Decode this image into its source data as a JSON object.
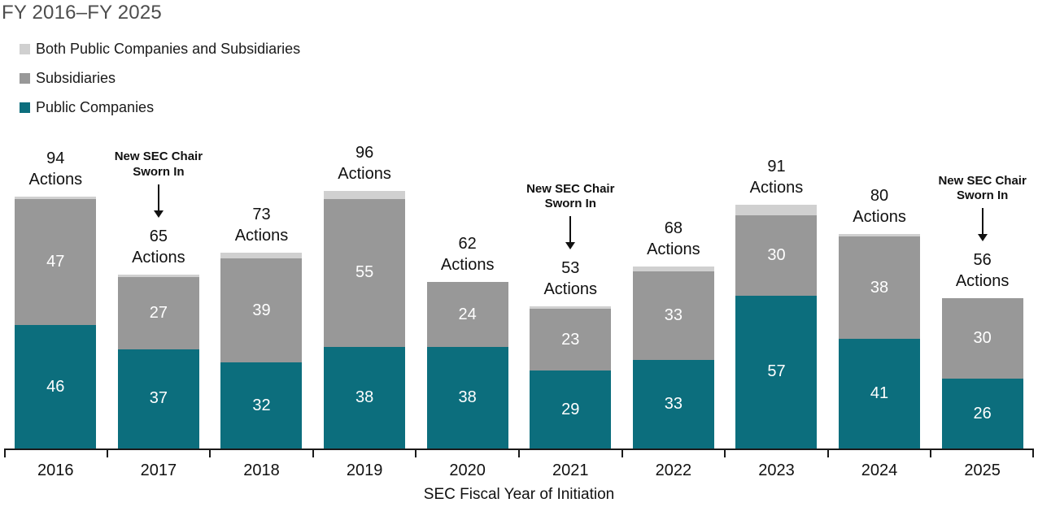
{
  "title": "FY 2016–FY 2025",
  "colors": {
    "public": "#0c6e7d",
    "subsidiaries": "#989898",
    "both": "#d0d0d0",
    "title_text": "#4d4d4d",
    "bar_value_text": "#ffffff",
    "axis": "#1a1a1a"
  },
  "legend": [
    {
      "label": "Both Public Companies and Subsidiaries",
      "color_key": "both"
    },
    {
      "label": "Subsidiaries",
      "color_key": "subsidiaries"
    },
    {
      "label": "Public Companies",
      "color_key": "public"
    }
  ],
  "chart_data": {
    "type": "bar",
    "stacked": true,
    "title": "FY 2016–FY 2025",
    "categories": [
      "2016",
      "2017",
      "2018",
      "2019",
      "2020",
      "2021",
      "2022",
      "2023",
      "2024",
      "2025"
    ],
    "series": [
      {
        "name": "Public Companies",
        "color_key": "public",
        "show_labels": true,
        "values": [
          46,
          37,
          32,
          38,
          38,
          29,
          33,
          57,
          41,
          26
        ]
      },
      {
        "name": "Subsidiaries",
        "color_key": "subsidiaries",
        "show_labels": true,
        "values": [
          47,
          27,
          39,
          55,
          24,
          23,
          33,
          30,
          38,
          30
        ]
      },
      {
        "name": "Both Public Companies and Subsidiaries",
        "color_key": "both",
        "show_labels": false,
        "values": [
          1,
          1,
          2,
          3,
          0,
          1,
          2,
          4,
          1,
          0
        ]
      }
    ],
    "totals": [
      94,
      65,
      73,
      96,
      62,
      53,
      68,
      91,
      80,
      56
    ],
    "total_label_suffix": "Actions",
    "annotations": [
      {
        "category": "2017",
        "lines": [
          "New SEC Chair",
          "Sworn In"
        ]
      },
      {
        "category": "2021",
        "lines": [
          "New SEC Chair",
          "Sworn In"
        ]
      },
      {
        "category": "2025",
        "lines": [
          "New SEC Chair",
          "Sworn In"
        ]
      }
    ],
    "xlabel": "SEC Fiscal Year of Initiation",
    "ylabel": "",
    "ylim": [
      0,
      100
    ],
    "grid": false,
    "legend_position": "top-left"
  }
}
